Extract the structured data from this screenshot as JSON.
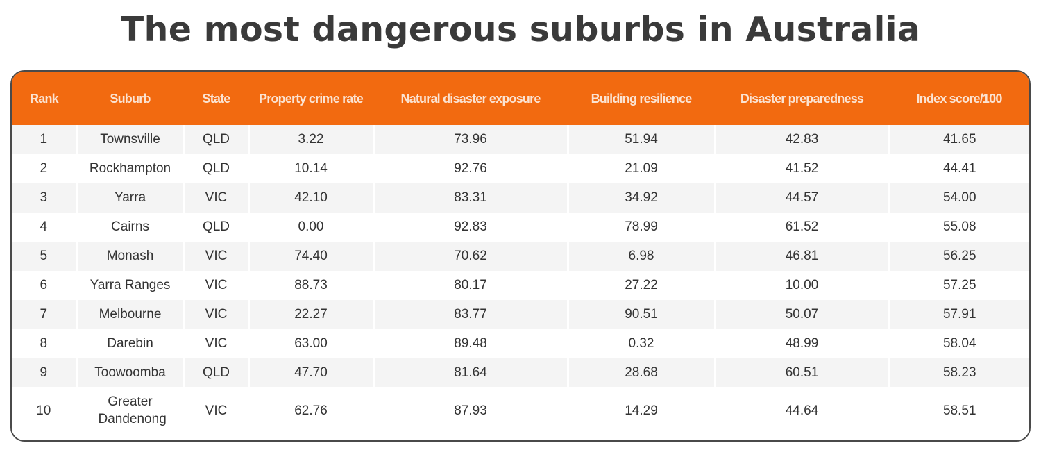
{
  "title": "The most dangerous suburbs in Australia",
  "header_color": "#f26a10",
  "columns": [
    "Rank",
    "Suburb",
    "State",
    "Property crime rate",
    "Natural disaster exposure",
    "Building resilience",
    "Disaster preparedness",
    "Index score/100"
  ],
  "rows": [
    [
      "1",
      "Townsville",
      "QLD",
      "3.22",
      "73.96",
      "51.94",
      "42.83",
      "41.65"
    ],
    [
      "2",
      "Rockhampton",
      "QLD",
      "10.14",
      "92.76",
      "21.09",
      "41.52",
      "44.41"
    ],
    [
      "3",
      "Yarra",
      "VIC",
      "42.10",
      "83.31",
      "34.92",
      "44.57",
      "54.00"
    ],
    [
      "4",
      "Cairns",
      "QLD",
      "0.00",
      "92.83",
      "78.99",
      "61.52",
      "55.08"
    ],
    [
      "5",
      "Monash",
      "VIC",
      "74.40",
      "70.62",
      "6.98",
      "46.81",
      "56.25"
    ],
    [
      "6",
      "Yarra Ranges",
      "VIC",
      "88.73",
      "80.17",
      "27.22",
      "10.00",
      "57.25"
    ],
    [
      "7",
      "Melbourne",
      "VIC",
      "22.27",
      "83.77",
      "90.51",
      "50.07",
      "57.91"
    ],
    [
      "8",
      "Darebin",
      "VIC",
      "63.00",
      "89.48",
      "0.32",
      "48.99",
      "58.04"
    ],
    [
      "9",
      "Toowoomba",
      "QLD",
      "47.70",
      "81.64",
      "28.68",
      "60.51",
      "58.23"
    ],
    [
      "10",
      "Greater Dandenong",
      "VIC",
      "62.76",
      "87.93",
      "14.29",
      "44.64",
      "58.51"
    ]
  ]
}
